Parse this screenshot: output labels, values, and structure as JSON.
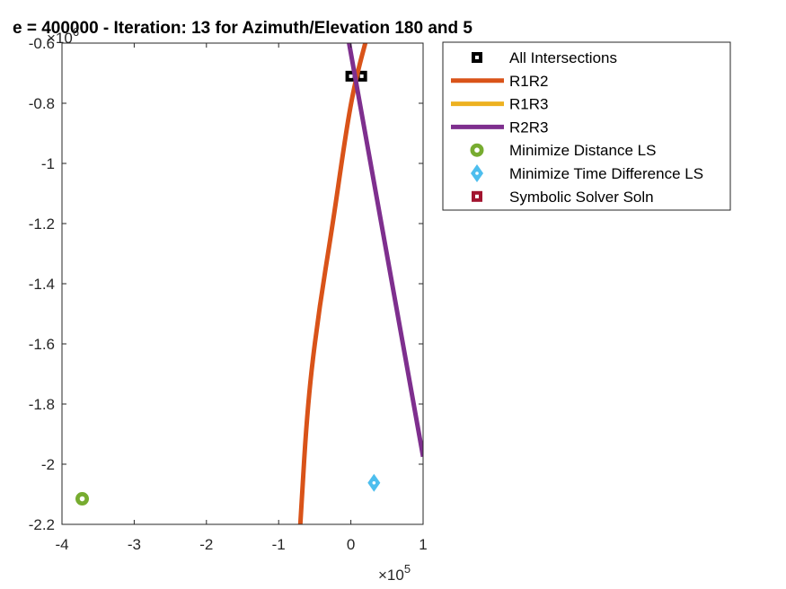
{
  "chart_data": {
    "type": "line",
    "title": "e = 400000 - Iteration: 13 for Azimuth/Elevation 180 and 5",
    "xlabel": "",
    "ylabel": "",
    "xlim": [
      -400000,
      100000
    ],
    "ylim": [
      -2200000,
      -600000
    ],
    "x_ticks": [
      -400000,
      -300000,
      -200000,
      -100000,
      0,
      100000
    ],
    "x_tick_labels": [
      "-4",
      "-3",
      "-2",
      "-1",
      "0",
      "1"
    ],
    "y_ticks": [
      -600000,
      -800000,
      -1000000,
      -1200000,
      -1400000,
      -1600000,
      -1800000,
      -2000000,
      -2200000
    ],
    "y_tick_labels": [
      "-0.6",
      "-0.8",
      "-1",
      "-1.2",
      "-1.4",
      "-1.6",
      "-1.8",
      "-2",
      "-2.2"
    ],
    "x_exponent": "×10",
    "x_exponent_power": "5",
    "y_exponent": "×10",
    "y_exponent_power": "6",
    "grid": false,
    "legend_position": "outside-top-right",
    "series": [
      {
        "name": "All Intersections",
        "kind": "marker",
        "marker": "square",
        "color": "#000000",
        "points": [
          [
            0,
            -710000
          ],
          [
            15000,
            -710000
          ]
        ]
      },
      {
        "name": "R1R2",
        "kind": "line",
        "color": "#D95319",
        "points": [
          [
            -70000,
            -2200000
          ],
          [
            -60000,
            -1800000
          ],
          [
            -45000,
            -1500000
          ],
          [
            -25000,
            -1200000
          ],
          [
            -10000,
            -950000
          ],
          [
            0,
            -800000
          ],
          [
            10000,
            -690000
          ],
          [
            20000,
            -600000
          ]
        ]
      },
      {
        "name": "R1R3",
        "kind": "line",
        "color": "#EDB120",
        "points": []
      },
      {
        "name": "R2R3",
        "kind": "line",
        "color": "#7E2F8E",
        "points": [
          [
            -2500,
            -600000
          ],
          [
            100000,
            -1975000
          ]
        ]
      },
      {
        "name": "Minimize Distance LS",
        "kind": "marker",
        "marker": "circle",
        "color": "#77AC30",
        "points": [
          [
            -372000,
            -2115000
          ]
        ]
      },
      {
        "name": "Minimize Time Difference LS",
        "kind": "marker",
        "marker": "diamond",
        "color": "#4DBEEE",
        "points": [
          [
            32000,
            -2062000
          ]
        ]
      },
      {
        "name": "Symbolic Solver Soln",
        "kind": "marker",
        "marker": "square",
        "color": "#A2142F",
        "points": []
      }
    ]
  }
}
